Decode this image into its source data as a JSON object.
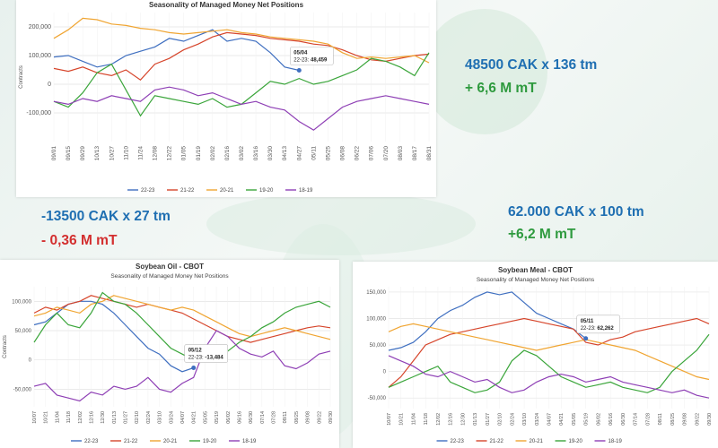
{
  "colors": {
    "s2223": "#3f6fc0",
    "s2122": "#d6452b",
    "s2021": "#f0a532",
    "s1920": "#3aa53a",
    "s1819": "#8e3fb5",
    "annot_blue": "#1f6fb2",
    "annot_green": "#2e9a3e",
    "annot_red": "#d32f2f"
  },
  "annotations": {
    "top_right_1": "48500 CAK x 136 tm",
    "top_right_2": "+ 6,6 M mT",
    "middle_left_1": "-13500 CAK x 27 tm",
    "middle_left_2": "- 0,36 M mT",
    "middle_right_1": "62.000 CAK x 100 tm",
    "middle_right_2": "+6,2 M mT"
  },
  "chart_data": [
    {
      "type": "line",
      "title": "Seasonality of Managed Money Net Positions",
      "subtitle": "",
      "ylabel": "Contracts",
      "ylim": [
        -200000,
        250000
      ],
      "yticks": [
        -100000,
        0,
        100000,
        200000
      ],
      "ytick_labels": [
        "-100,000",
        "0",
        "100,000",
        "200,000"
      ],
      "x_labels": [
        "09/01",
        "09/15",
        "09/29",
        "10/13",
        "10/27",
        "11/10",
        "11/24",
        "12/08",
        "12/22",
        "01/05",
        "01/19",
        "02/02",
        "02/16",
        "03/02",
        "03/16",
        "03/30",
        "04/13",
        "04/27",
        "05/11",
        "05/25",
        "06/08",
        "06/22",
        "07/06",
        "07/20",
        "08/03",
        "08/17",
        "08/31"
      ],
      "legend_position": "bottom",
      "series": [
        {
          "name": "22-23",
          "color": "#3f6fc0",
          "values": [
            95000,
            100000,
            80000,
            60000,
            70000,
            100000,
            115000,
            130000,
            160000,
            150000,
            170000,
            190000,
            150000,
            160000,
            150000,
            110000,
            60000,
            48459
          ]
        },
        {
          "name": "21-22",
          "color": "#d6452b",
          "values": [
            55000,
            45000,
            60000,
            40000,
            30000,
            50000,
            15000,
            70000,
            90000,
            120000,
            140000,
            165000,
            180000,
            175000,
            170000,
            160000,
            155000,
            150000,
            140000,
            135000,
            120000,
            100000,
            85000,
            80000,
            90000,
            100000,
            105000
          ]
        },
        {
          "name": "20-21",
          "color": "#f0a532",
          "values": [
            160000,
            190000,
            230000,
            225000,
            210000,
            205000,
            195000,
            190000,
            180000,
            175000,
            180000,
            185000,
            190000,
            180000,
            175000,
            165000,
            160000,
            155000,
            150000,
            140000,
            110000,
            90000,
            95000,
            90000,
            95000,
            100000,
            75000
          ]
        },
        {
          "name": "19-20",
          "color": "#3aa53a",
          "values": [
            -60000,
            -80000,
            -30000,
            40000,
            70000,
            -20000,
            -110000,
            -40000,
            -50000,
            -60000,
            -70000,
            -50000,
            -80000,
            -70000,
            -30000,
            10000,
            0,
            20000,
            0,
            10000,
            30000,
            50000,
            90000,
            80000,
            60000,
            30000,
            110000
          ]
        },
        {
          "name": "18-19",
          "color": "#8e3fb5",
          "values": [
            -60000,
            -70000,
            -50000,
            -60000,
            -40000,
            -50000,
            -60000,
            -20000,
            -10000,
            -20000,
            -40000,
            -30000,
            -50000,
            -70000,
            -60000,
            -80000,
            -90000,
            -130000,
            -160000,
            -120000,
            -80000,
            -60000,
            -50000,
            -40000,
            -50000,
            -60000,
            -70000
          ]
        }
      ],
      "callout": {
        "date": "05/04",
        "series_label": "22-23:",
        "value": "48,459"
      }
    },
    {
      "type": "line",
      "title": "Soybean Oil - CBOT",
      "subtitle": "Seasonality of Managed Money Net Positions",
      "ylabel": "Contracts",
      "ylim": [
        -80000,
        125000
      ],
      "yticks": [
        -50000,
        0,
        50000,
        100000
      ],
      "ytick_labels": [
        "-50,000",
        "0",
        "50,000",
        "100,000"
      ],
      "x_labels": [
        "10/07",
        "10/21",
        "11/04",
        "11/18",
        "12/02",
        "12/16",
        "12/30",
        "01/13",
        "01/27",
        "02/10",
        "02/24",
        "03/10",
        "03/24",
        "04/07",
        "04/21",
        "05/05",
        "05/19",
        "06/02",
        "06/16",
        "06/30",
        "07/14",
        "07/28",
        "08/11",
        "08/25",
        "09/08",
        "09/22",
        "09/30"
      ],
      "legend_position": "bottom",
      "series": [
        {
          "name": "22-23",
          "color": "#3f6fc0",
          "values": [
            60000,
            65000,
            80000,
            95000,
            100000,
            100000,
            95000,
            80000,
            60000,
            40000,
            20000,
            10000,
            -10000,
            -20000,
            -13484
          ]
        },
        {
          "name": "21-22",
          "color": "#d6452b",
          "values": [
            80000,
            90000,
            85000,
            95000,
            100000,
            110000,
            105000,
            100000,
            95000,
            90000,
            95000,
            90000,
            85000,
            80000,
            70000,
            60000,
            50000,
            40000,
            35000,
            30000,
            35000,
            40000,
            45000,
            50000,
            55000,
            58000,
            55000
          ]
        },
        {
          "name": "20-21",
          "color": "#f0a532",
          "values": [
            75000,
            80000,
            90000,
            85000,
            80000,
            95000,
            100000,
            110000,
            105000,
            100000,
            95000,
            90000,
            85000,
            90000,
            85000,
            75000,
            65000,
            55000,
            45000,
            40000,
            45000,
            50000,
            55000,
            50000,
            45000,
            40000,
            35000
          ]
        },
        {
          "name": "19-20",
          "color": "#3aa53a",
          "values": [
            30000,
            60000,
            80000,
            60000,
            55000,
            80000,
            115000,
            100000,
            95000,
            80000,
            60000,
            40000,
            20000,
            10000,
            0,
            0,
            5000,
            15000,
            30000,
            40000,
            55000,
            65000,
            80000,
            90000,
            95000,
            100000,
            90000
          ]
        },
        {
          "name": "18-19",
          "color": "#8e3fb5",
          "values": [
            -45000,
            -40000,
            -60000,
            -65000,
            -70000,
            -55000,
            -60000,
            -45000,
            -50000,
            -45000,
            -30000,
            -50000,
            -55000,
            -40000,
            -30000,
            20000,
            50000,
            40000,
            20000,
            10000,
            5000,
            15000,
            -10000,
            -15000,
            -5000,
            10000,
            15000
          ]
        }
      ],
      "callout": {
        "date": "05/12",
        "series_label": "22-23:",
        "value": "-13,484"
      }
    },
    {
      "type": "line",
      "title": "Soybean Meal - CBOT",
      "subtitle": "Seasonality of Managed Money Net Positions",
      "ylabel": "",
      "ylim": [
        -70000,
        160000
      ],
      "yticks": [
        -50000,
        0,
        50000,
        100000,
        150000
      ],
      "ytick_labels": [
        "-50,000",
        "0",
        "50,000",
        "100,000",
        "150,000"
      ],
      "x_labels": [
        "10/07",
        "10/21",
        "11/04",
        "11/18",
        "12/02",
        "12/16",
        "12/30",
        "01/13",
        "01/27",
        "02/10",
        "02/24",
        "03/10",
        "03/24",
        "04/07",
        "04/21",
        "05/05",
        "05/19",
        "06/02",
        "06/16",
        "06/30",
        "07/14",
        "07/28",
        "08/11",
        "08/25",
        "09/08",
        "09/22",
        "09/30"
      ],
      "legend_position": "bottom",
      "series": [
        {
          "name": "22-23",
          "color": "#3f6fc0",
          "values": [
            40000,
            45000,
            55000,
            75000,
            100000,
            115000,
            125000,
            140000,
            150000,
            145000,
            150000,
            130000,
            110000,
            100000,
            90000,
            80000,
            62262
          ]
        },
        {
          "name": "21-22",
          "color": "#d6452b",
          "values": [
            -30000,
            -10000,
            20000,
            50000,
            60000,
            70000,
            75000,
            80000,
            85000,
            90000,
            95000,
            100000,
            95000,
            90000,
            85000,
            80000,
            55000,
            50000,
            60000,
            65000,
            75000,
            80000,
            85000,
            90000,
            95000,
            100000,
            90000
          ]
        },
        {
          "name": "20-21",
          "color": "#f0a532",
          "values": [
            75000,
            85000,
            90000,
            85000,
            80000,
            75000,
            70000,
            65000,
            60000,
            55000,
            50000,
            45000,
            40000,
            45000,
            50000,
            55000,
            60000,
            55000,
            50000,
            45000,
            40000,
            30000,
            20000,
            10000,
            0,
            -10000,
            -15000
          ]
        },
        {
          "name": "19-20",
          "color": "#3aa53a",
          "values": [
            -30000,
            -20000,
            -10000,
            0,
            10000,
            -20000,
            -30000,
            -40000,
            -35000,
            -20000,
            20000,
            40000,
            30000,
            10000,
            -10000,
            -20000,
            -30000,
            -25000,
            -20000,
            -30000,
            -35000,
            -40000,
            -30000,
            0,
            20000,
            40000,
            70000
          ]
        },
        {
          "name": "18-19",
          "color": "#8e3fb5",
          "values": [
            30000,
            20000,
            10000,
            -5000,
            -10000,
            0,
            -10000,
            -20000,
            -15000,
            -30000,
            -40000,
            -35000,
            -20000,
            -10000,
            -5000,
            -10000,
            -20000,
            -15000,
            -10000,
            -20000,
            -25000,
            -30000,
            -35000,
            -40000,
            -35000,
            -45000,
            -50000
          ]
        }
      ],
      "callout": {
        "date": "05/11",
        "series_label": "22-23:",
        "value": "62,262"
      }
    }
  ]
}
